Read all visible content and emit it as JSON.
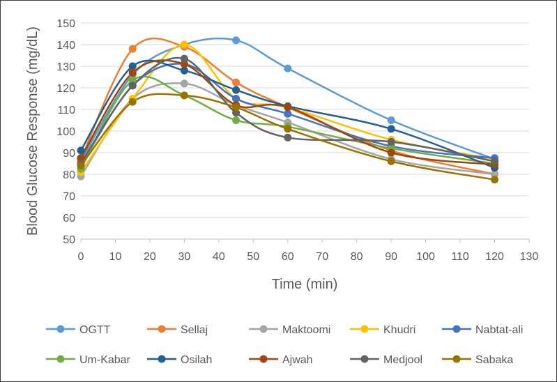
{
  "chart_data": {
    "type": "line",
    "title": "",
    "xlabel": "Time (min)",
    "ylabel": "Blood Glucose Response (mg/dL)",
    "xlim": [
      0,
      130
    ],
    "ylim": [
      50,
      150
    ],
    "xticks": [
      0,
      10,
      20,
      30,
      40,
      50,
      60,
      70,
      80,
      90,
      100,
      110,
      120,
      130
    ],
    "yticks": [
      50,
      60,
      70,
      80,
      90,
      100,
      110,
      120,
      130,
      140,
      150
    ],
    "grid": "horizontal",
    "smooth": true,
    "legend_position": "bottom",
    "x": [
      0,
      15,
      30,
      45,
      60,
      90,
      120
    ],
    "series": [
      {
        "name": "OGTT",
        "color": "#5B9BD5",
        "values": [
          86,
          126,
          140,
          142,
          129,
          105,
          87
        ]
      },
      {
        "name": "Sellaj",
        "color": "#ED7D31",
        "values": [
          87,
          138,
          139,
          122.5,
          111,
          91,
          80
        ]
      },
      {
        "name": "Maktoomi",
        "color": "#A5A5A5",
        "values": [
          79,
          115,
          122,
          112,
          104,
          87,
          80
        ]
      },
      {
        "name": "Khudri",
        "color": "#FFC000",
        "values": [
          81,
          115,
          140,
          115,
          111,
          96,
          87
        ]
      },
      {
        "name": "Nabtat-ali",
        "color": "#4472C4",
        "values": [
          84,
          121,
          131,
          115,
          108,
          93,
          87.5
        ]
      },
      {
        "name": "Um-Kabar",
        "color": "#70AD47",
        "values": [
          82.5,
          123.5,
          116.5,
          105,
          102,
          92,
          85
        ]
      },
      {
        "name": "Osilah",
        "color": "#255E91",
        "values": [
          91,
          130,
          128,
          119,
          111.5,
          101,
          83
        ]
      },
      {
        "name": "Ajwah",
        "color": "#9E480E",
        "values": [
          87.5,
          127,
          131,
          112,
          111,
          90,
          84.5
        ]
      },
      {
        "name": "Medjool",
        "color": "#636363",
        "values": [
          85,
          121,
          133.5,
          108.5,
          97,
          95,
          86
        ]
      },
      {
        "name": "Sabaka",
        "color": "#997300",
        "values": [
          84,
          113.5,
          116.5,
          111,
          101,
          86,
          77.5
        ]
      }
    ]
  }
}
